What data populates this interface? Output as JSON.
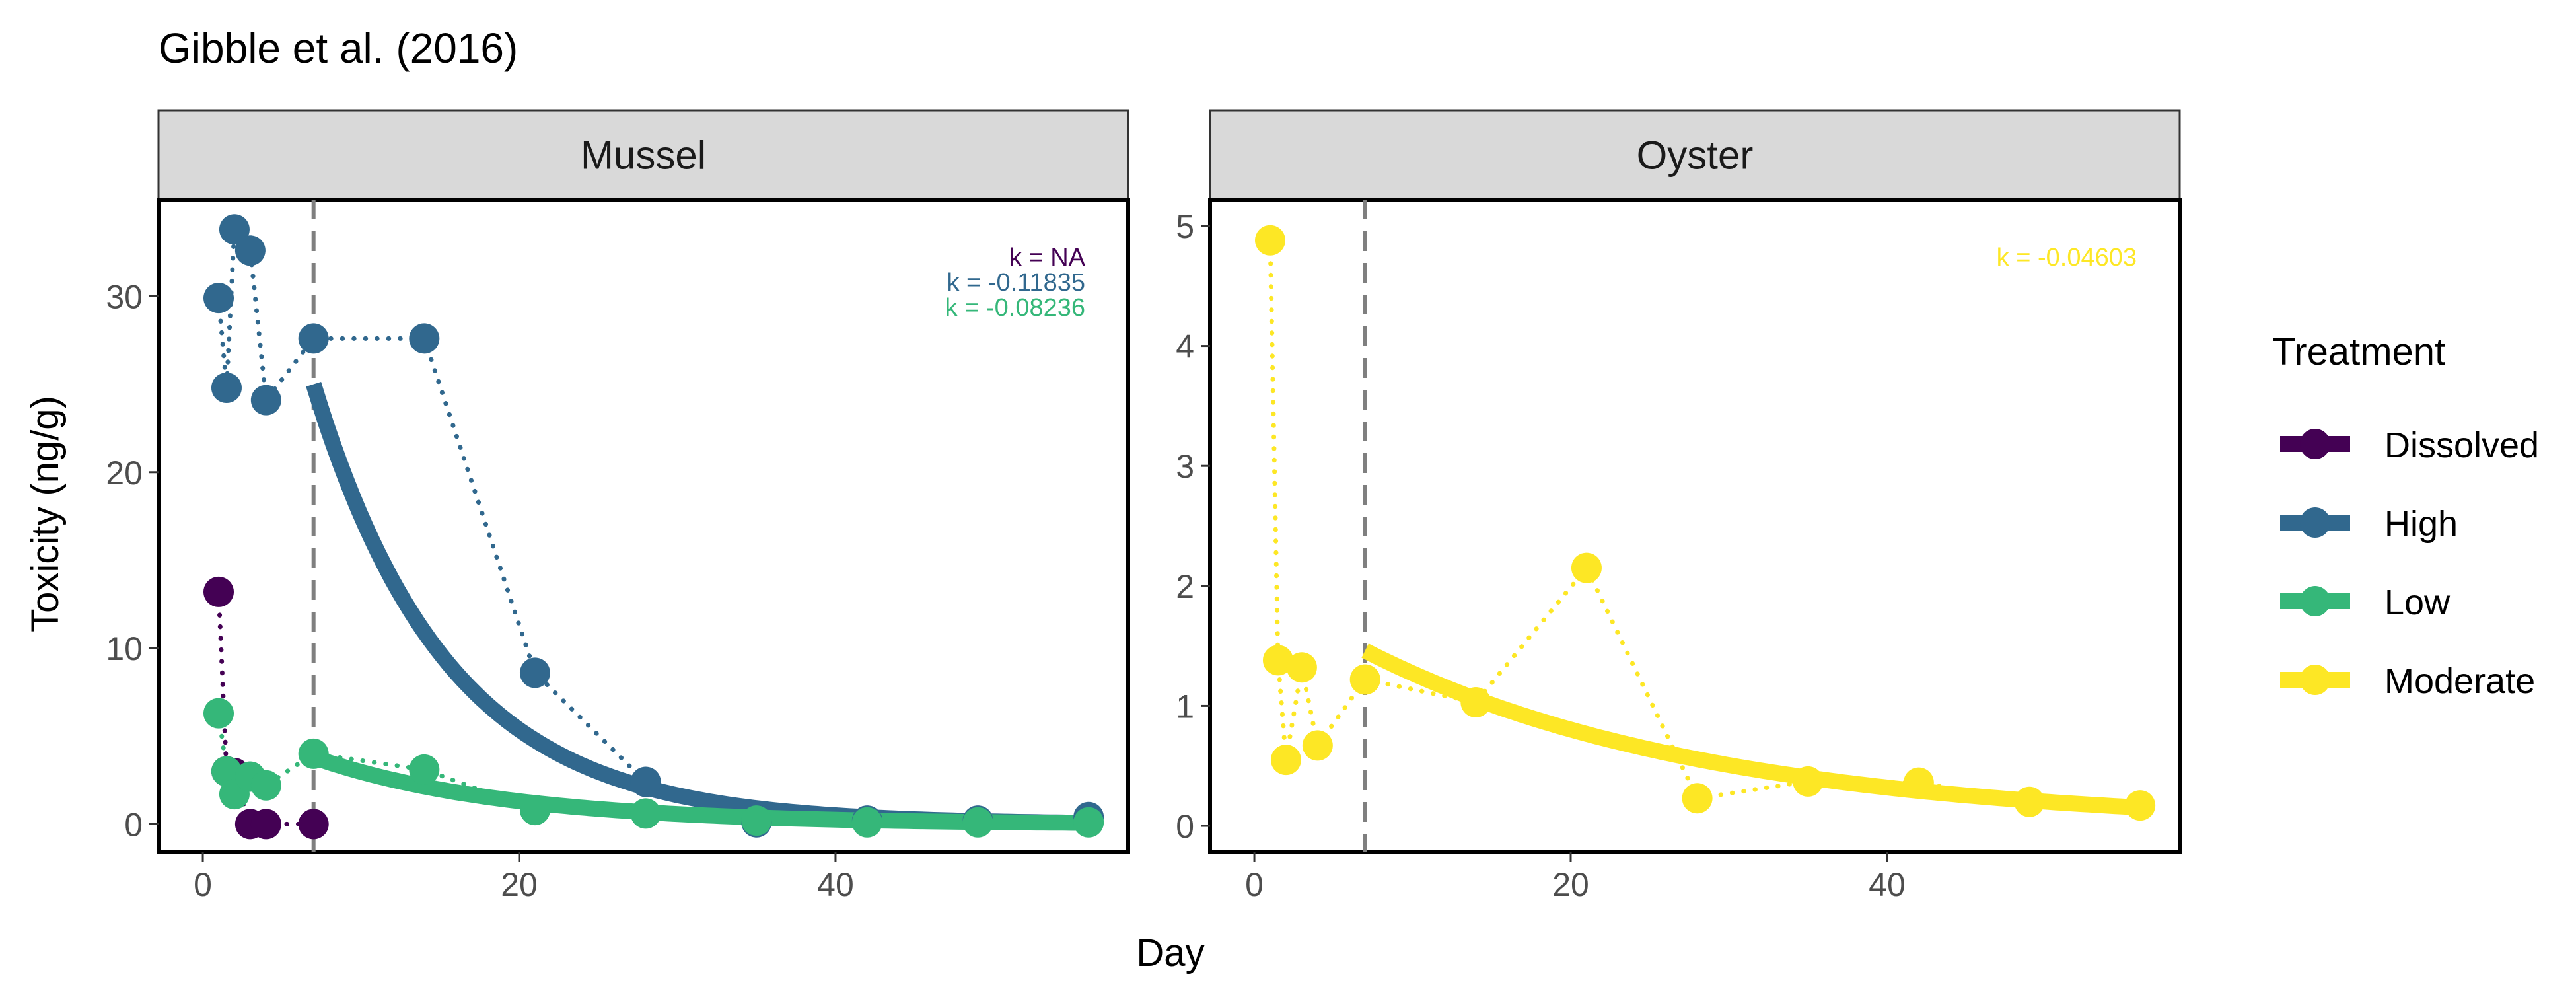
{
  "title": "Gibble et al. (2016)",
  "xlabel": "Day",
  "ylabel": "Toxicity (ng/g)",
  "legend": {
    "title": "Treatment",
    "items": [
      {
        "label": "Dissolved",
        "color": "#440154"
      },
      {
        "label": "High",
        "color": "#31688E"
      },
      {
        "label": "Low",
        "color": "#35B779"
      },
      {
        "label": "Moderate",
        "color": "#FDE725"
      }
    ]
  },
  "chart_data": [
    {
      "type": "scatter",
      "panel": "Mussel",
      "xlim": [
        -2.8,
        58.5
      ],
      "ylim": [
        -1.6,
        35.5
      ],
      "xticks": [
        0,
        20,
        40
      ],
      "yticks": [
        0,
        10,
        20,
        30
      ],
      "vline_x": 7,
      "series": [
        {
          "name": "Dissolved",
          "color": "#440154",
          "points": [
            [
              1,
              13.2
            ],
            [
              1.5,
              3.0
            ],
            [
              2,
              2.9
            ],
            [
              3,
              0
            ],
            [
              4,
              0
            ],
            [
              7,
              0
            ]
          ],
          "path": [
            [
              1,
              13.2
            ],
            [
              1.5,
              3.0
            ],
            [
              2,
              2.9
            ],
            [
              3,
              0
            ],
            [
              4,
              0
            ],
            [
              7,
              0
            ]
          ],
          "k_label": "k = NA"
        },
        {
          "name": "High",
          "color": "#31688E",
          "points": [
            [
              1,
              29.9
            ],
            [
              1.5,
              24.8
            ],
            [
              2,
              33.8
            ],
            [
              3,
              32.6
            ],
            [
              4,
              24.1
            ],
            [
              7,
              27.6
            ],
            [
              14,
              27.6
            ],
            [
              21,
              8.6
            ],
            [
              28,
              2.4
            ],
            [
              35,
              0.1
            ],
            [
              42,
              0.2
            ],
            [
              49,
              0.2
            ],
            [
              56,
              0.4
            ]
          ],
          "path": [
            [
              1,
              29.9
            ],
            [
              1.5,
              24.8
            ],
            [
              2,
              33.8
            ],
            [
              3,
              32.6
            ],
            [
              4,
              24.1
            ],
            [
              7,
              27.6
            ],
            [
              14,
              27.6
            ],
            [
              21,
              8.6
            ],
            [
              28,
              2.4
            ],
            [
              35,
              0.1
            ],
            [
              42,
              0.2
            ],
            [
              49,
              0.2
            ],
            [
              56,
              0.4
            ]
          ],
          "fit": {
            "x_start": 7,
            "x_end": 56,
            "c": 25.0,
            "k": -0.11835
          },
          "k_label": "k = -0.11835"
        },
        {
          "name": "Low",
          "color": "#35B779",
          "points": [
            [
              1,
              6.3
            ],
            [
              1.5,
              3.0
            ],
            [
              2,
              1.7
            ],
            [
              3,
              2.7
            ],
            [
              4,
              2.2
            ],
            [
              7,
              4.0
            ],
            [
              14,
              3.1
            ],
            [
              21,
              0.8
            ],
            [
              28,
              0.6
            ],
            [
              35,
              0.2
            ],
            [
              42,
              0.1
            ],
            [
              49,
              0.1
            ],
            [
              56,
              0.1
            ]
          ],
          "path": [
            [
              1,
              6.3
            ],
            [
              1.5,
              3.0
            ],
            [
              2,
              1.7
            ],
            [
              3,
              2.7
            ],
            [
              4,
              2.2
            ],
            [
              7,
              4.0
            ],
            [
              14,
              3.1
            ],
            [
              21,
              0.8
            ],
            [
              28,
              0.6
            ],
            [
              35,
              0.2
            ],
            [
              42,
              0.1
            ],
            [
              49,
              0.1
            ],
            [
              56,
              0.1
            ]
          ],
          "fit": {
            "x_start": 7,
            "x_end": 56,
            "c": 3.8,
            "k": -0.08236
          },
          "k_label": "k = -0.08236"
        }
      ]
    },
    {
      "type": "scatter",
      "panel": "Oyster",
      "xlim": [
        -2.8,
        58.5
      ],
      "ylim": [
        -0.22,
        5.22
      ],
      "xticks": [
        0,
        20,
        40
      ],
      "yticks": [
        0,
        1,
        2,
        3,
        4,
        5
      ],
      "vline_x": 7,
      "series": [
        {
          "name": "Moderate",
          "color": "#FDE725",
          "points": [
            [
              1,
              4.88
            ],
            [
              1.5,
              1.38
            ],
            [
              2,
              0.55
            ],
            [
              3,
              1.32
            ],
            [
              4,
              0.67
            ],
            [
              7,
              1.22
            ],
            [
              14,
              1.03
            ],
            [
              21,
              2.15
            ],
            [
              28,
              0.23
            ],
            [
              35,
              0.37
            ],
            [
              42,
              0.36
            ],
            [
              49,
              0.2
            ],
            [
              56,
              0.17
            ]
          ],
          "path": [
            [
              1,
              4.88
            ],
            [
              1.5,
              1.38
            ],
            [
              2,
              0.55
            ],
            [
              3,
              1.32
            ],
            [
              4,
              0.67
            ],
            [
              7,
              1.22
            ],
            [
              14,
              1.03
            ],
            [
              21,
              2.15
            ],
            [
              28,
              0.23
            ],
            [
              35,
              0.37
            ],
            [
              42,
              0.36
            ],
            [
              49,
              0.2
            ],
            [
              56,
              0.17
            ]
          ],
          "fit": {
            "x_start": 7,
            "x_end": 56,
            "c": 1.46,
            "k": -0.04603
          },
          "k_label": "k = -0.04603"
        }
      ]
    }
  ]
}
